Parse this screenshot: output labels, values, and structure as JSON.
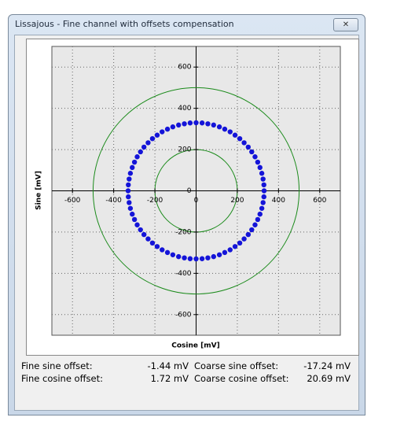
{
  "window": {
    "title": "Lissajous - Fine channel with offsets compensation"
  },
  "chart_data": {
    "type": "scatter",
    "xlabel": "Cosine [mV]",
    "ylabel": "Sine [mV]",
    "xlim": [
      -700,
      700
    ],
    "ylim": [
      -700,
      700
    ],
    "xticks": [
      -600,
      -400,
      -200,
      0,
      200,
      400,
      600
    ],
    "yticks": [
      -600,
      -400,
      -200,
      0,
      200,
      400,
      600
    ],
    "grid": true,
    "reference_circles": [
      {
        "radius": 200,
        "color": "#1a8a1a"
      },
      {
        "radius": 500,
        "color": "#1a8a1a"
      }
    ],
    "series": [
      {
        "color": "#1414d8",
        "x": [
          330,
          329,
          325,
          319,
          310,
          299,
          286,
          270,
          253,
          233,
          212,
          189,
          165,
          139,
          113,
          85,
          57,
          29,
          0,
          -29,
          -57,
          -85,
          -113,
          -139,
          -165,
          -189,
          -212,
          -233,
          -253,
          -270,
          -286,
          -299,
          -310,
          -319,
          -325,
          -329,
          -330,
          -329,
          -325,
          -319,
          -310,
          -299,
          -286,
          -270,
          -253,
          -233,
          -212,
          -189,
          -165,
          -139,
          -113,
          -85,
          -57,
          -29,
          0,
          29,
          57,
          85,
          113,
          139,
          165,
          189,
          212,
          233,
          253,
          270,
          286,
          299,
          310,
          319,
          325,
          329
        ],
        "values": [
          0,
          29,
          57,
          85,
          113,
          139,
          165,
          189,
          212,
          233,
          253,
          270,
          286,
          299,
          310,
          319,
          325,
          329,
          330,
          329,
          325,
          319,
          310,
          299,
          286,
          270,
          253,
          233,
          212,
          189,
          165,
          139,
          113,
          85,
          57,
          29,
          0,
          -29,
          -57,
          -85,
          -113,
          -139,
          -165,
          -189,
          -212,
          -233,
          -253,
          -270,
          -286,
          -299,
          -310,
          -319,
          -325,
          -329,
          -330,
          -329,
          -325,
          -319,
          -310,
          -299,
          -286,
          -270,
          -253,
          -233,
          -212,
          -189,
          -165,
          -139,
          -113,
          -85,
          -57,
          -29
        ]
      }
    ]
  },
  "offsets": [
    {
      "label": "Fine sine offset:",
      "value": "-1.44 mV"
    },
    {
      "label": "Fine cosine offset:",
      "value": "1.72 mV"
    },
    {
      "label": "Coarse sine offset:",
      "value": "-17.24 mV"
    },
    {
      "label": "Coarse cosine offset:",
      "value": "20.69 mV"
    }
  ]
}
